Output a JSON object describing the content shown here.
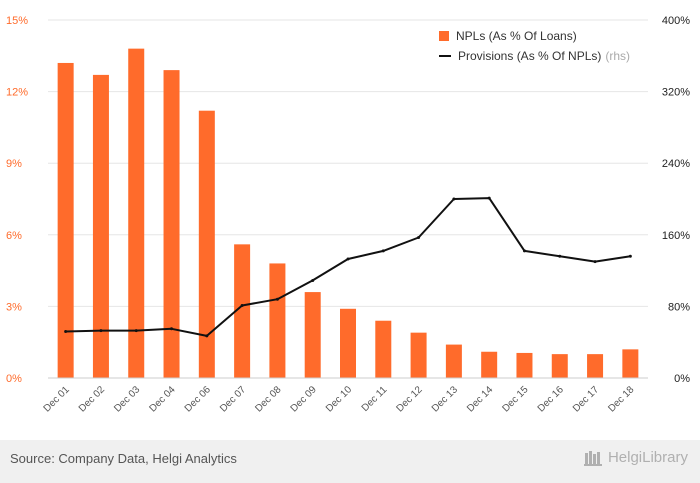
{
  "chart_data": {
    "type": "bar",
    "categories": [
      "Dec 01",
      "Dec 02",
      "Dec 03",
      "Dec 04",
      "Dec 06",
      "Dec 07",
      "Dec 08",
      "Dec 09",
      "Dec 10",
      "Dec 11",
      "Dec 12",
      "Dec 13",
      "Dec 14",
      "Dec 15",
      "Dec 16",
      "Dec 17",
      "Dec 18"
    ],
    "series": [
      {
        "name": "NPLs (As % Of Loans)",
        "type": "bar",
        "axis": "left",
        "color": "#ff6b2b",
        "values": [
          13.2,
          12.7,
          13.8,
          12.9,
          11.2,
          5.6,
          4.8,
          3.6,
          2.9,
          2.4,
          1.9,
          1.4,
          1.1,
          1.05,
          1.0,
          1.0,
          1.2
        ]
      },
      {
        "name": "Provisions (As % Of NPLs)",
        "type": "line",
        "axis": "right",
        "color": "#111111",
        "values": [
          52,
          53,
          53,
          55,
          47,
          81,
          88,
          109,
          133,
          142,
          157,
          200,
          201,
          142,
          136,
          130,
          136
        ]
      }
    ],
    "y_left": {
      "min": 0,
      "max": 15,
      "ticks": [
        0,
        3,
        6,
        9,
        12,
        15
      ],
      "tick_labels": [
        "0%",
        "3%",
        "6%",
        "9%",
        "12%",
        "15%"
      ]
    },
    "y_right": {
      "min": 0,
      "max": 400,
      "ticks": [
        0,
        80,
        160,
        240,
        320,
        400
      ],
      "tick_labels": [
        "0%",
        "80%",
        "160%",
        "240%",
        "320%",
        "400%"
      ]
    },
    "grid": true,
    "legend_position": "top-right",
    "legend_suffix": "(rhs)"
  },
  "footer": {
    "source": "Source: Company Data, Helgi Analytics",
    "brand": "HelgiLibrary"
  },
  "colors": {
    "bar": "#ff6b2b",
    "line": "#111111",
    "left_axis_text": "#ff6b2b",
    "grid": "#e6e6e6"
  }
}
